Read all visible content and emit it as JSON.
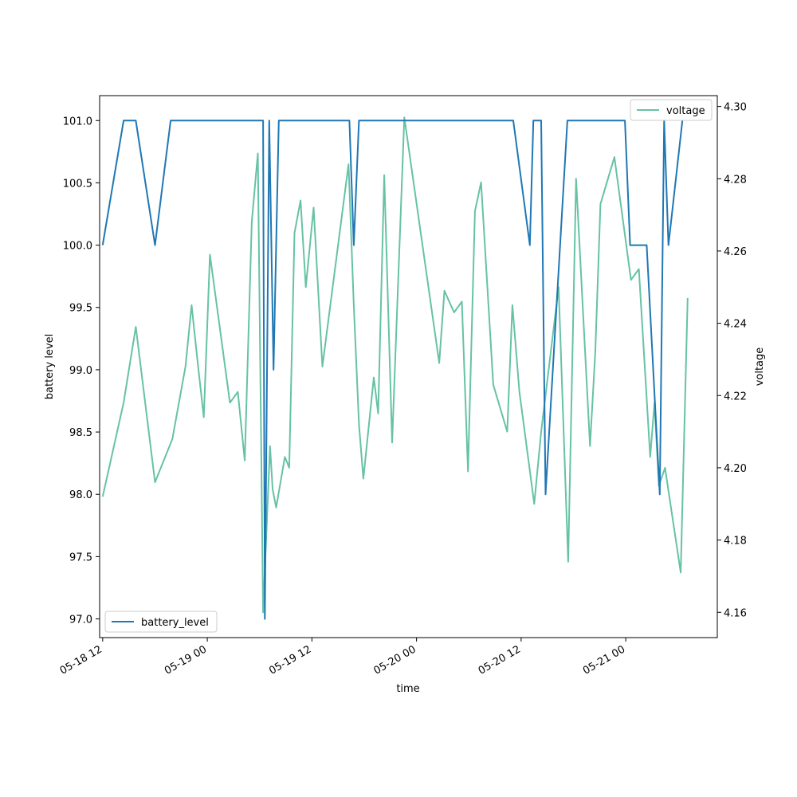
{
  "chart_data": {
    "type": "line",
    "xlabel": "time",
    "ylabel": "battery level",
    "y2label": "voltage",
    "x_ticks": [
      "05-18 12",
      "05-19 00",
      "05-19 12",
      "05-20 00",
      "05-20 12",
      "05-21 00"
    ],
    "x_tick_hours": [
      0,
      12,
      24,
      36,
      48,
      60
    ],
    "xlim": [
      -0.35,
      70.5
    ],
    "ylim": [
      96.85,
      101.2
    ],
    "y2lim": [
      4.153,
      4.303
    ],
    "y_ticks": [
      "97.0",
      "97.5",
      "98.0",
      "98.5",
      "99.0",
      "99.5",
      "100.0",
      "100.5",
      "101.0"
    ],
    "y2_ticks": [
      "4.16",
      "4.18",
      "4.20",
      "4.22",
      "4.24",
      "4.26",
      "4.28",
      "4.30"
    ],
    "legend_left": {
      "label": "battery_level",
      "position": "lower-left"
    },
    "legend_right": {
      "label": "voltage",
      "position": "upper-right"
    },
    "grid": false,
    "series": [
      {
        "name": "battery_level",
        "color": "#1f77b4",
        "axis": "left",
        "x": [
          0,
          2.4,
          3.8,
          6.0,
          7.8,
          18.4,
          18.6,
          19.1,
          19.6,
          20.2,
          20.8,
          28.3,
          28.8,
          29.4,
          47.1,
          49.0,
          49.4,
          50.3,
          50.8,
          53.3,
          54.4,
          56.1,
          57.4,
          58.5,
          59.9,
          60.5,
          61.3,
          62.4,
          63.9,
          64.4,
          64.9,
          66.5
        ],
        "values": [
          100,
          101,
          101,
          100,
          101,
          101,
          97,
          101,
          99,
          101,
          101,
          101,
          100,
          101,
          101,
          100,
          101,
          101,
          98,
          101,
          101,
          101,
          101,
          101,
          101,
          100,
          100,
          100,
          98,
          101,
          100,
          101
        ]
      },
      {
        "name": "voltage",
        "color": "#66c2a5",
        "axis": "right",
        "x": [
          0,
          2.4,
          3.8,
          6.0,
          8.0,
          9.5,
          10.2,
          10.9,
          11.6,
          12.3,
          14.6,
          15.5,
          16.3,
          17.1,
          17.8,
          18.4,
          19.2,
          19.5,
          19.9,
          20.9,
          21.4,
          22.0,
          22.7,
          23.3,
          24.2,
          25.2,
          28.2,
          28.8,
          29.4,
          29.9,
          31.1,
          31.6,
          32.3,
          33.2,
          34.6,
          38.6,
          39.2,
          40.3,
          41.2,
          41.9,
          42.7,
          43.4,
          44.8,
          46.4,
          47.0,
          47.8,
          49.5,
          50.3,
          52.3,
          53.4,
          54.3,
          55.9,
          56.5,
          57.1,
          58.7,
          60.6,
          61.5,
          62.8,
          63.3,
          63.8,
          64.5,
          66.3,
          67.1
        ],
        "values": [
          4.192,
          4.218,
          4.239,
          4.196,
          4.208,
          4.228,
          4.245,
          4.229,
          4.214,
          4.259,
          4.218,
          4.221,
          4.202,
          4.268,
          4.287,
          4.16,
          4.206,
          4.194,
          4.189,
          4.203,
          4.2,
          4.265,
          4.274,
          4.25,
          4.272,
          4.228,
          4.284,
          4.245,
          4.212,
          4.197,
          4.225,
          4.215,
          4.281,
          4.207,
          4.297,
          4.229,
          4.249,
          4.243,
          4.246,
          4.199,
          4.271,
          4.279,
          4.223,
          4.21,
          4.245,
          4.221,
          4.19,
          4.21,
          4.25,
          4.174,
          4.28,
          4.206,
          4.232,
          4.273,
          4.286,
          4.252,
          4.255,
          4.203,
          4.218,
          4.195,
          4.2,
          4.171,
          4.247
        ]
      }
    ]
  }
}
